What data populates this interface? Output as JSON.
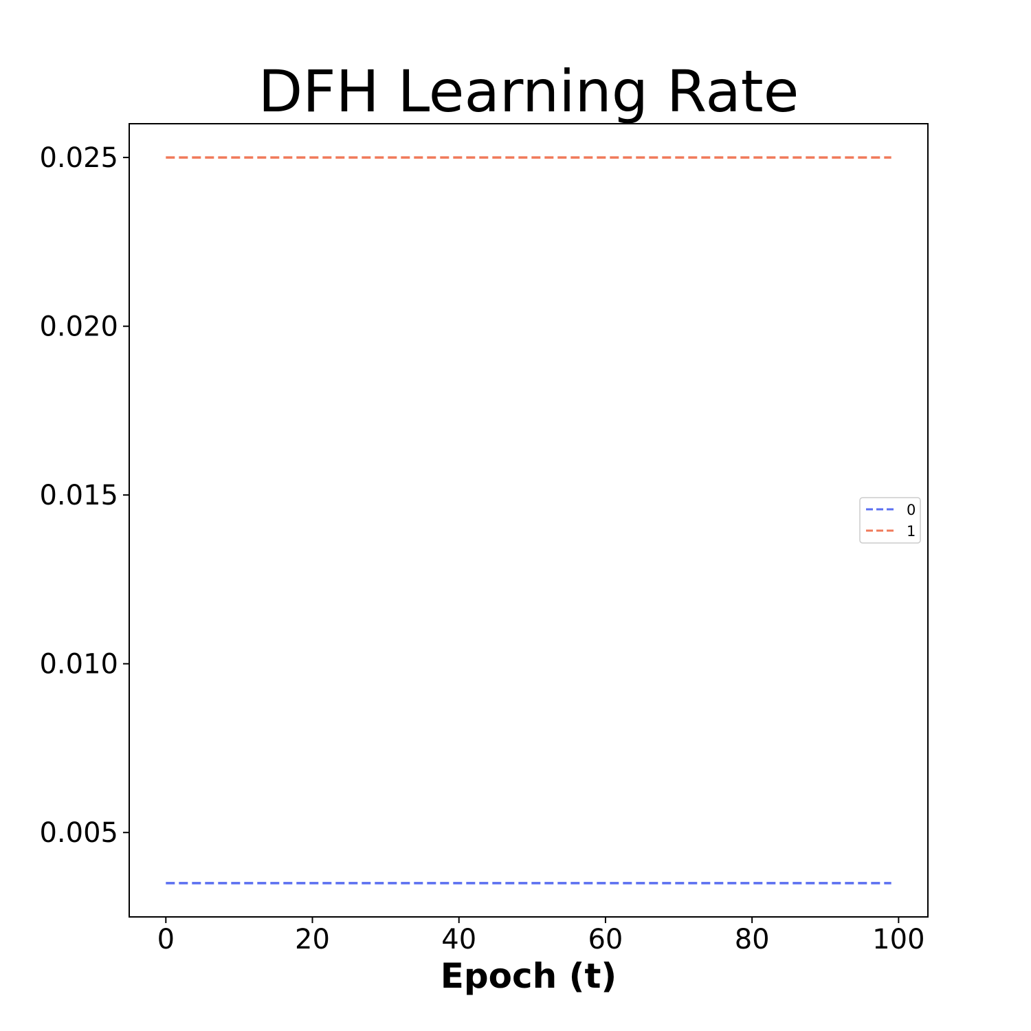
{
  "chart_data": {
    "type": "line",
    "title": "DFH Learning Rate",
    "xlabel": "Epoch (t)",
    "ylabel": "",
    "xlim": [
      -5,
      104
    ],
    "ylim": [
      0.0025,
      0.026
    ],
    "xticks": [
      0,
      20,
      40,
      60,
      80,
      100
    ],
    "yticks": [
      0.005,
      0.01,
      0.015,
      0.02,
      0.025
    ],
    "xtick_labels": [
      "0",
      "20",
      "40",
      "60",
      "80",
      "100"
    ],
    "ytick_labels": [
      "0.005",
      "0.010",
      "0.015",
      "0.020",
      "0.025"
    ],
    "grid": false,
    "legend_position": "center-right",
    "series": [
      {
        "name": "0",
        "color": "#5a6ff0",
        "line_style": "dashed",
        "x": [
          0,
          99
        ],
        "y": [
          0.0035,
          0.0035
        ]
      },
      {
        "name": "1",
        "color": "#f07a5a",
        "line_style": "dashed",
        "x": [
          0,
          99
        ],
        "y": [
          0.025,
          0.025
        ]
      }
    ]
  }
}
